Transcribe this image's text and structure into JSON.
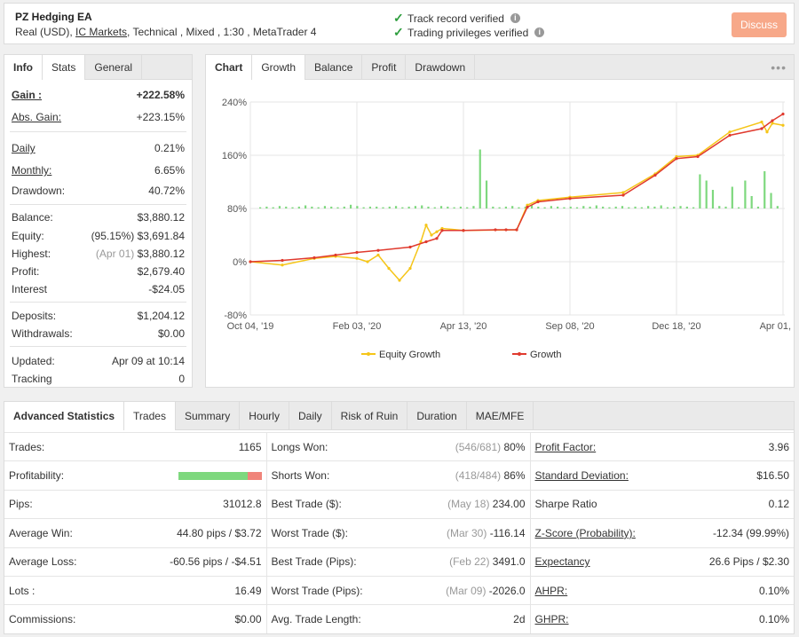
{
  "header": {
    "system_name": "PZ Hedging EA",
    "info_prefix": "Real (USD), ",
    "broker": "IC Markets",
    "info_suffix": ", Technical , Mixed , 1:30 , MetaTrader 4",
    "verified_1": "Track record verified",
    "verified_2": "Trading privileges verified",
    "discuss": "Discuss"
  },
  "stats_tabs": [
    "Info",
    "Stats",
    "General"
  ],
  "stats": {
    "gain": {
      "label": "Gain :",
      "value": "+222.58%"
    },
    "abs_gain": {
      "label": "Abs. Gain:",
      "value": "+223.15%"
    },
    "daily": {
      "label": "Daily",
      "value": "0.21%"
    },
    "monthly": {
      "label": "Monthly:",
      "value": "6.65%"
    },
    "drawdown": {
      "label": "Drawdown:",
      "value": "40.72%"
    },
    "balance": {
      "label": "Balance:",
      "value": "$3,880.12"
    },
    "equity": {
      "label": "Equity:",
      "pct": "(95.15%)",
      "value": "$3,691.84"
    },
    "highest": {
      "label": "Highest:",
      "date": "(Apr 01)",
      "value": "$3,880.12"
    },
    "profit": {
      "label": "Profit:",
      "value": "$2,679.40"
    },
    "interest": {
      "label": "Interest",
      "value": "-$24.05"
    },
    "deposits": {
      "label": "Deposits:",
      "value": "$1,204.12"
    },
    "withdrawals": {
      "label": "Withdrawals:",
      "value": "$0.00"
    },
    "updated": {
      "label": "Updated:",
      "value": "Apr 09 at 10:14"
    },
    "tracking": {
      "label": "Tracking",
      "value": "0"
    }
  },
  "chart_tabs": [
    "Chart",
    "Growth",
    "Balance",
    "Profit",
    "Drawdown"
  ],
  "chart_data": {
    "type": "line",
    "y_ticks": [
      "240%",
      "160%",
      "80%",
      "0%",
      "-80%"
    ],
    "ylim": [
      -80,
      240
    ],
    "x_ticks": [
      "Oct 04, '19",
      "Feb 03, '20",
      "Apr 13, '20",
      "Sep 08, '20",
      "Dec 18, '20",
      "Apr 01, '21"
    ],
    "legend": [
      "Equity Growth",
      "Growth"
    ],
    "colors": {
      "equity": "#f5c518",
      "growth": "#e03a2e",
      "bars": "#7ed87e"
    },
    "series": [
      {
        "name": "Growth",
        "x_index": [
          0,
          0.3,
          0.6,
          0.8,
          1.0,
          1.2,
          1.5,
          1.65,
          1.75,
          1.8,
          2.0,
          2.3,
          2.4,
          2.5,
          2.6,
          2.7,
          3.0,
          3.5,
          3.8,
          4.0,
          4.2,
          4.5,
          4.8,
          4.9,
          5.0
        ],
        "values": [
          0,
          2,
          6,
          10,
          14,
          17,
          22,
          30,
          35,
          47,
          47,
          48,
          48,
          48,
          82,
          90,
          95,
          100,
          130,
          155,
          158,
          190,
          200,
          212,
          222
        ]
      },
      {
        "name": "Equity Growth",
        "x_index": [
          0,
          0.3,
          0.6,
          0.8,
          1.0,
          1.1,
          1.2,
          1.3,
          1.4,
          1.5,
          1.6,
          1.65,
          1.7,
          1.75,
          1.8,
          2.0,
          2.5,
          2.6,
          2.7,
          3.0,
          3.5,
          3.8,
          4.0,
          4.2,
          4.5,
          4.8,
          4.85,
          4.9,
          5.0
        ],
        "values": [
          0,
          -5,
          5,
          8,
          5,
          0,
          10,
          -10,
          -28,
          -10,
          30,
          55,
          40,
          45,
          50,
          47,
          48,
          85,
          92,
          97,
          104,
          132,
          158,
          160,
          195,
          210,
          195,
          208,
          205
        ]
      }
    ],
    "bars": [
      2,
      3,
      2,
      4,
      3,
      2,
      3,
      5,
      3,
      2,
      4,
      3,
      2,
      3,
      6,
      4,
      2,
      3,
      3,
      2,
      3,
      4,
      2,
      3,
      4,
      5,
      3,
      2,
      4,
      3,
      2,
      3,
      2,
      4,
      95,
      45,
      3,
      2,
      3,
      4,
      2,
      3,
      5,
      3,
      2,
      4,
      3,
      2,
      3,
      2,
      4,
      3,
      5,
      3,
      2,
      3,
      4,
      2,
      3,
      2,
      4,
      3,
      5,
      2,
      3,
      4,
      3,
      2,
      55,
      45,
      30,
      4,
      3,
      35,
      2,
      45,
      20,
      3,
      60,
      25,
      4
    ]
  },
  "adv_tabs": [
    "Advanced Statistics",
    "Trades",
    "Summary",
    "Hourly",
    "Daily",
    "Risk of Ruin",
    "Duration",
    "MAE/MFE"
  ],
  "adv": {
    "rows": [
      {
        "k1": "Trades:",
        "v1": "1165",
        "k2": "Longs Won:",
        "d2": "(546/681)",
        "v2": "80%",
        "k3": "Profit Factor:",
        "v3": "3.96"
      },
      {
        "k1": "Profitability:",
        "v1": "",
        "k2": "Shorts Won:",
        "d2": "(418/484)",
        "v2": "86%",
        "k3": "Standard Deviation:",
        "v3": "$16.50"
      },
      {
        "k1": "Pips:",
        "v1": "31012.8",
        "k2": "Best Trade ($):",
        "d2": "(May 18)",
        "v2": "234.00",
        "k3": "Sharpe Ratio",
        "v3": "0.12"
      },
      {
        "k1": "Average Win:",
        "v1": "44.80 pips / $3.72",
        "k2": "Worst Trade ($):",
        "d2": "(Mar 30)",
        "v2": "-116.14",
        "k3": "Z-Score (Probability):",
        "v3": "-12.34 (99.99%)"
      },
      {
        "k1": "Average Loss:",
        "v1": "-60.56 pips / -$4.51",
        "k2": "Best Trade (Pips):",
        "d2": "(Feb 22)",
        "v2": "3491.0",
        "k3": "Expectancy",
        "v3": "26.6 Pips / $2.30"
      },
      {
        "k1": "Lots :",
        "v1": "16.49",
        "k2": "Worst Trade (Pips):",
        "d2": "(Mar 09)",
        "v2": "-2026.0",
        "k3": "AHPR:",
        "v3": "0.10%"
      },
      {
        "k1": "Commissions:",
        "v1": "$0.00",
        "k2": "Avg. Trade Length:",
        "d2": "",
        "v2": "2d",
        "k3": "GHPR:",
        "v3": "0.10%"
      }
    ],
    "profitability_fraction": 0.83
  }
}
